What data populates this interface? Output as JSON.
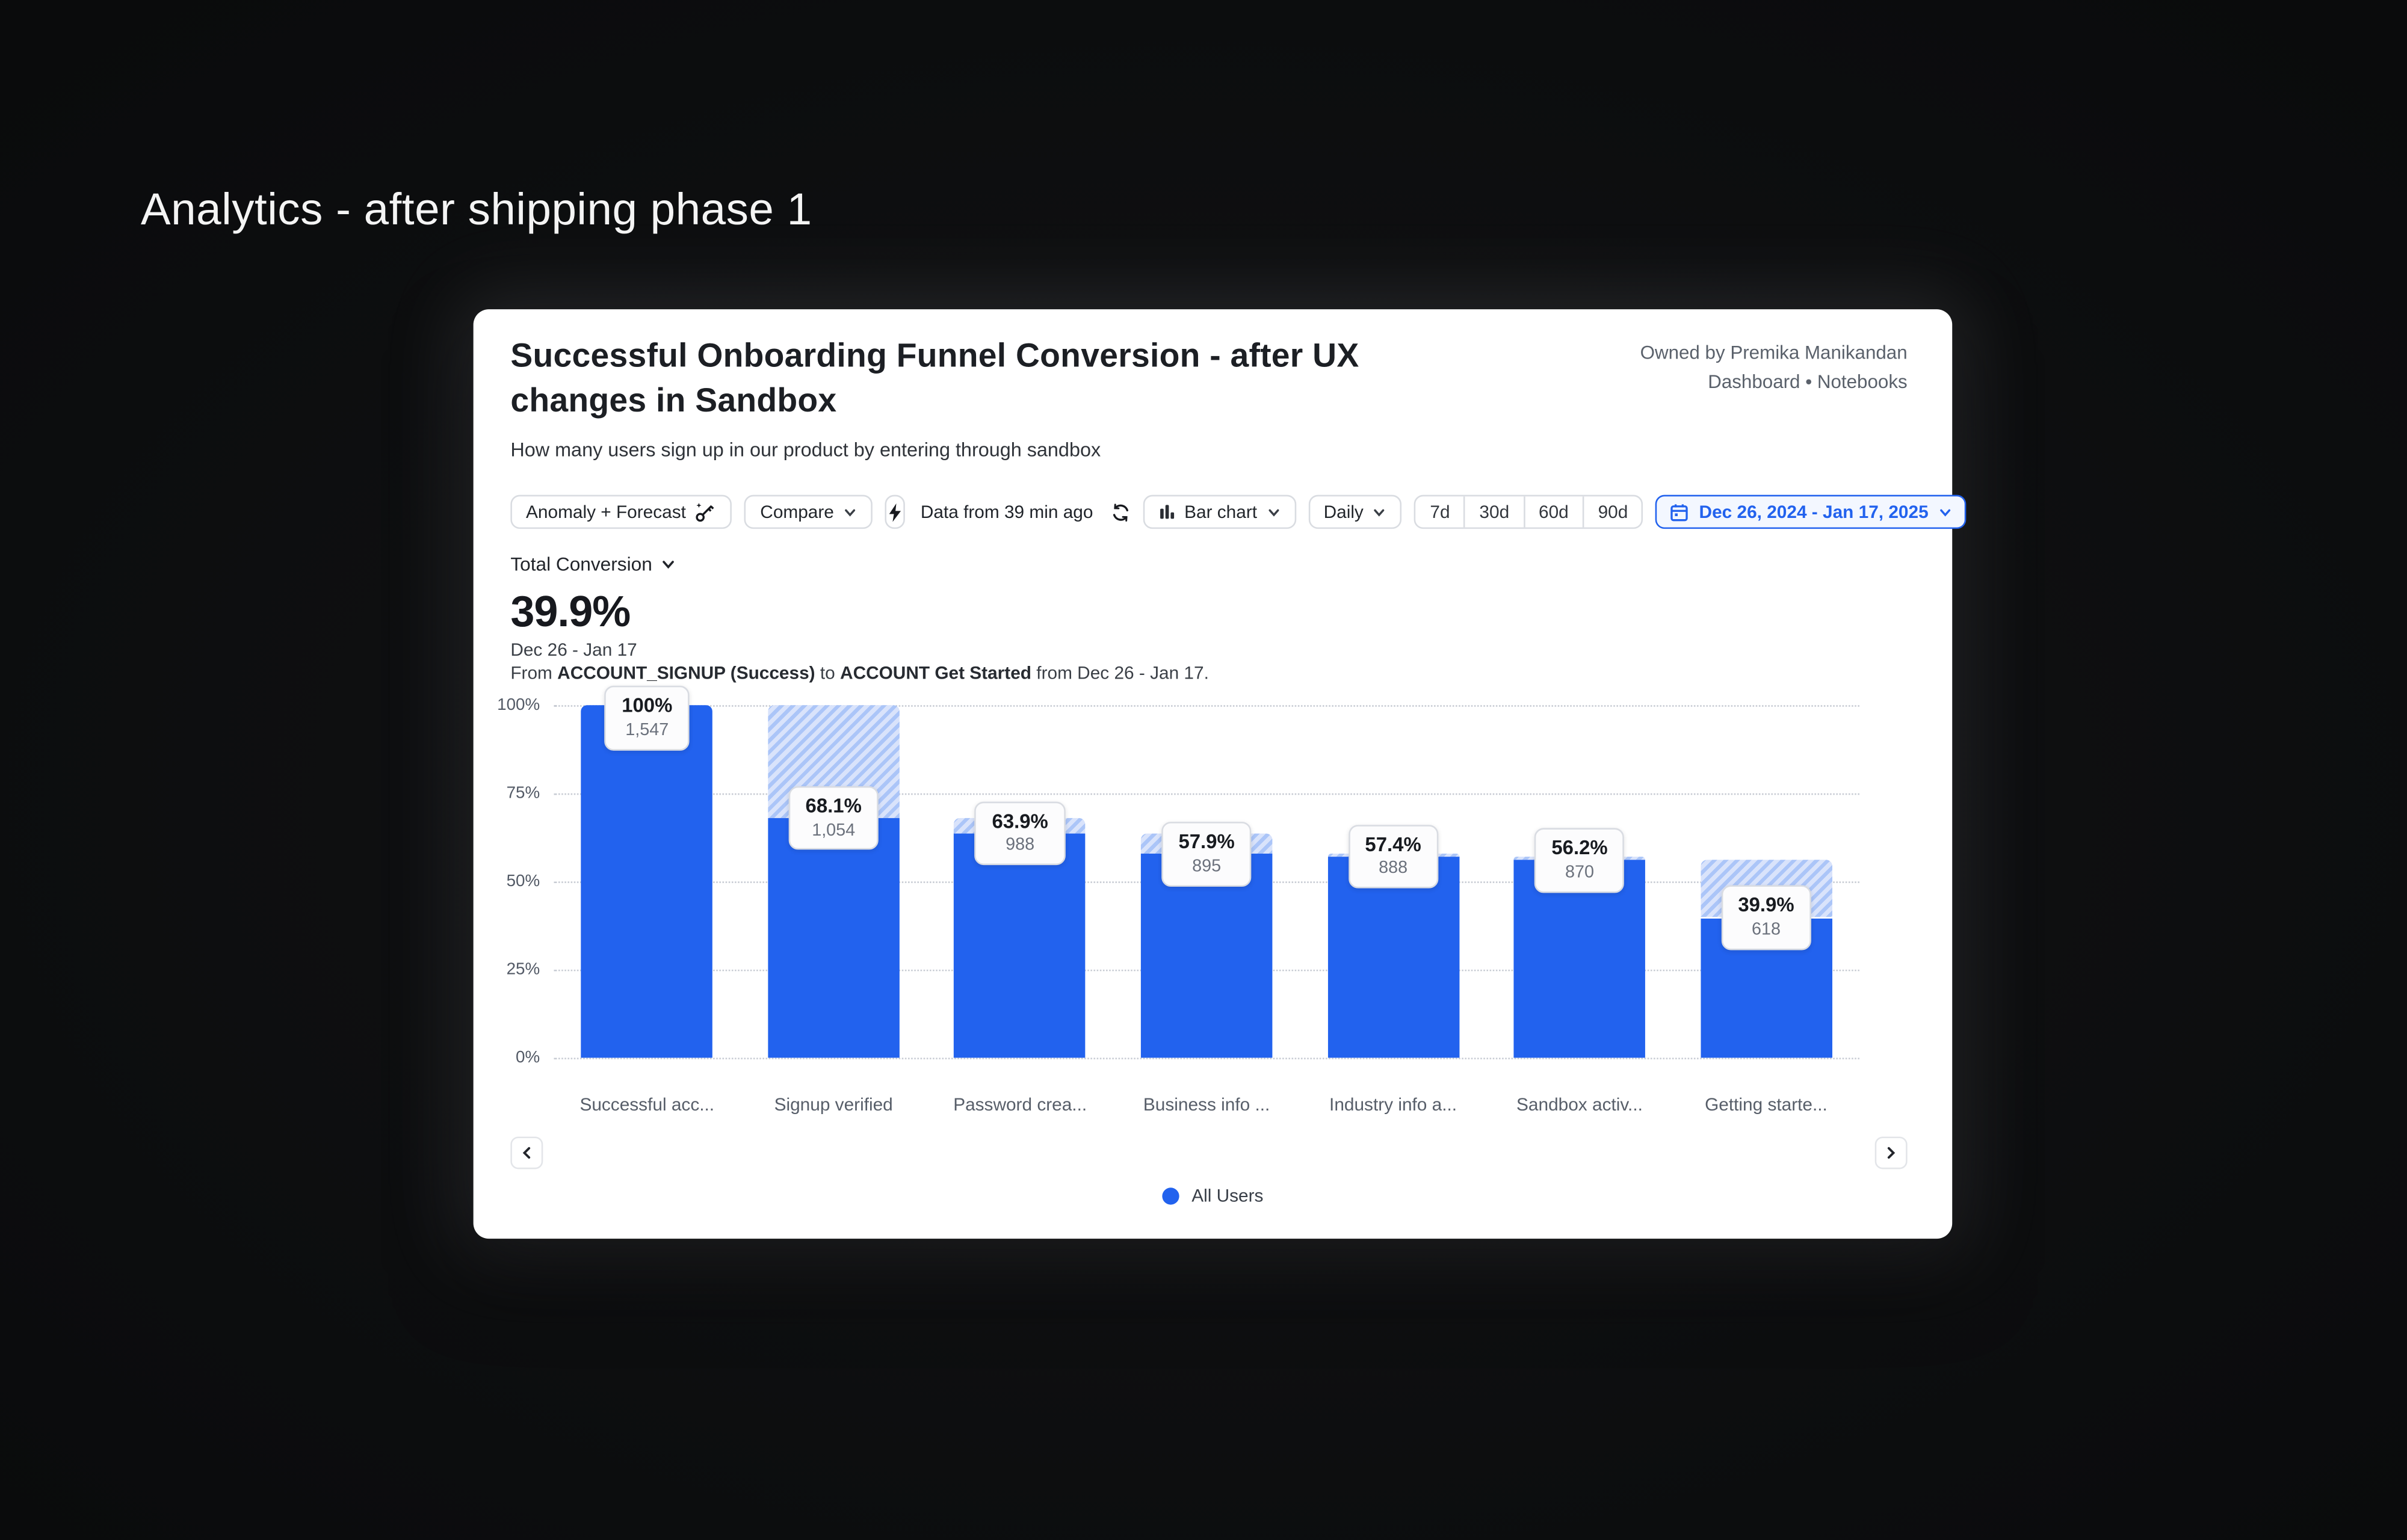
{
  "page": {
    "heading": "Analytics - after shipping phase 1"
  },
  "card": {
    "title": "Successful Onboarding Funnel Conversion - after UX changes in Sandbox",
    "subtitle": "How many users sign up in our product by entering through sandbox",
    "owner": "Owned by Premika Manikandan",
    "location": "Dashboard • Notebooks",
    "toolbar": {
      "anomaly_forecast": "Anomaly + Forecast",
      "compare": "Compare",
      "data_freshness": "Data from 39 min ago",
      "chart_type": "Bar chart",
      "interval": "Daily",
      "ranges": [
        "7d",
        "30d",
        "60d",
        "90d"
      ],
      "date_range": "Dec 26, 2024 - Jan 17, 2025"
    },
    "metric": {
      "selector": "Total Conversion",
      "value": "39.9%",
      "range": "Dec 26 - Jan 17",
      "desc": {
        "from": "From ",
        "event_a": "ACCOUNT_SIGNUP (Success)",
        "to": " to ",
        "event_b": "ACCOUNT Get Started",
        "tail": " from Dec 26 - Jan 17."
      }
    },
    "legend": {
      "label": "All Users",
      "color": "#2262ee"
    }
  },
  "chart_data": {
    "type": "bar",
    "title": "Successful Onboarding Funnel Conversion - after UX changes in Sandbox",
    "categories": [
      "Successful acc...",
      "Signup verified",
      "Password crea...",
      "Business info ...",
      "Industry info a...",
      "Sandbox activ...",
      "Getting starte..."
    ],
    "series": [
      {
        "name": "All Users",
        "values": [
          100,
          68.1,
          63.9,
          57.9,
          57.4,
          56.2,
          39.9
        ],
        "counts": [
          1547,
          1054,
          988,
          895,
          888,
          870,
          618
        ]
      }
    ],
    "value_labels": [
      "100%",
      "68.1%",
      "63.9%",
      "57.9%",
      "57.4%",
      "56.2%",
      "39.9%"
    ],
    "count_labels": [
      "1,547",
      "1,054",
      "988",
      "895",
      "888",
      "870",
      "618"
    ],
    "xlabel": "",
    "ylabel": "",
    "ylim": [
      0,
      100
    ],
    "yticks": [
      0,
      25,
      50,
      75,
      100
    ],
    "ytick_labels": [
      "0%",
      "25%",
      "50%",
      "75%",
      "100%"
    ],
    "grid": "dotted-horizontal",
    "legend": [
      "All Users"
    ],
    "legend_position": "bottom-center",
    "bar_color": "#2262ee",
    "dropoff_hatch": {
      "background": "#d9e3fb",
      "stripe": "#abc5f8"
    },
    "note": "hatched cap above each bar spans from current step % up to previous step % (drop-off)"
  }
}
